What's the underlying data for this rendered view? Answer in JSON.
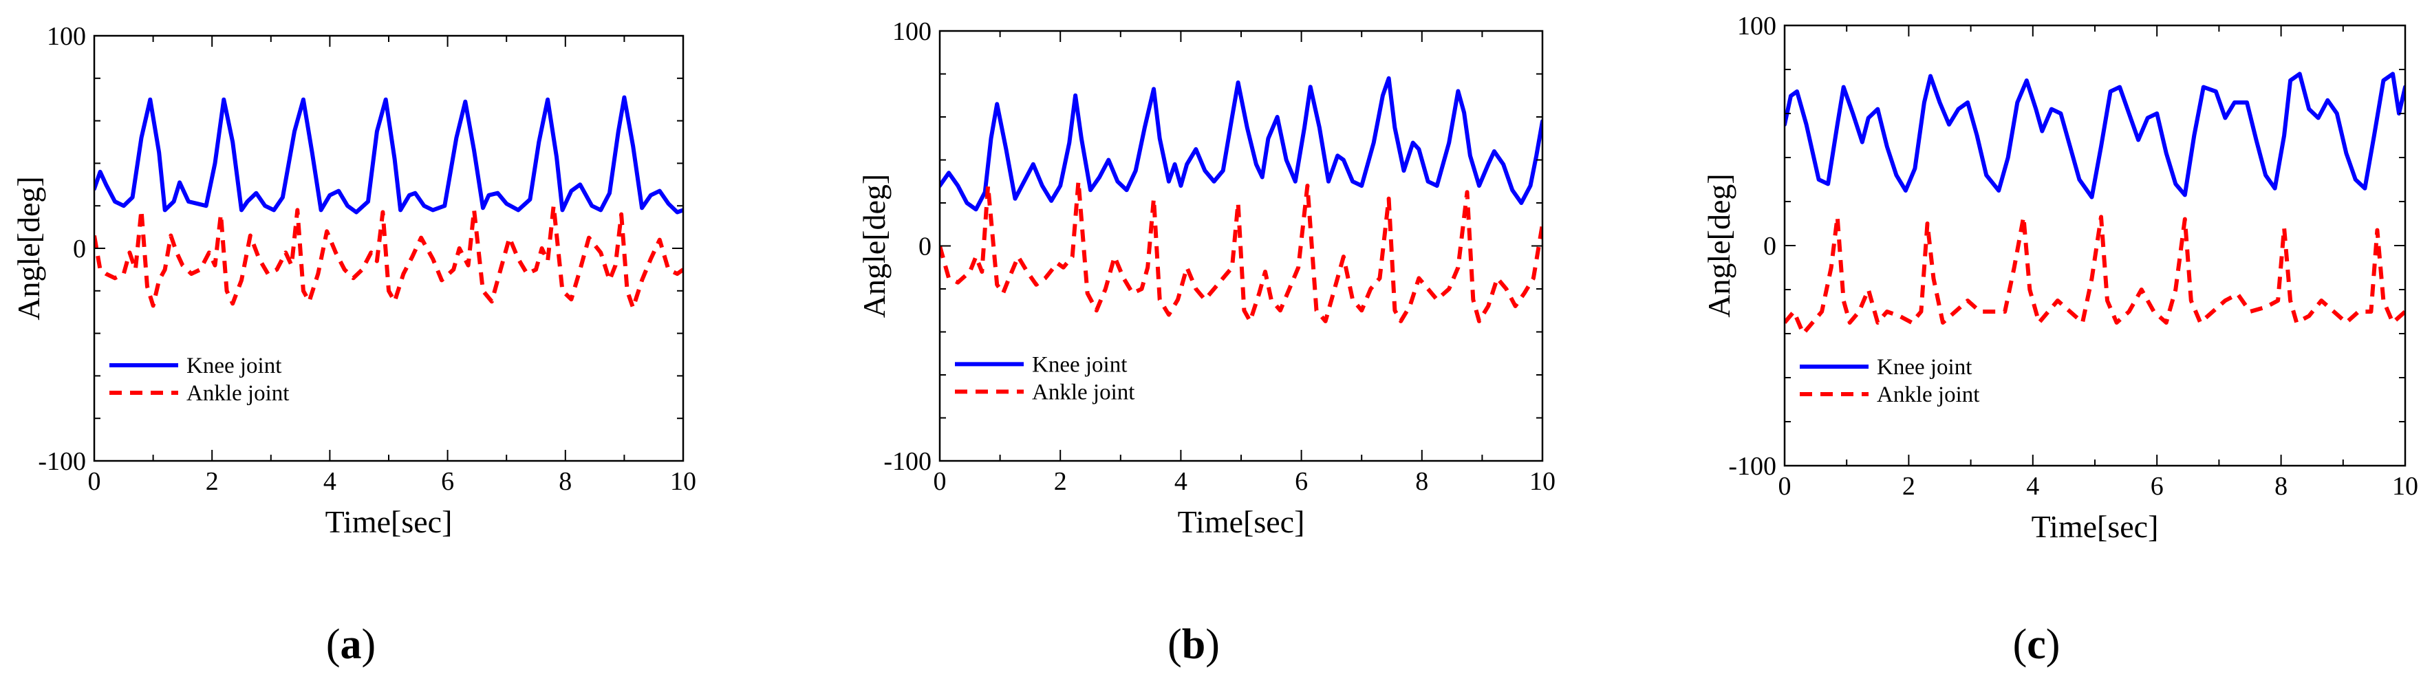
{
  "chart_data": [
    {
      "type": "line",
      "panel_label": "a",
      "xlabel": "Time[sec]",
      "ylabel": "Angle[deg]",
      "xlim": [
        0,
        10
      ],
      "ylim": [
        -100,
        100
      ],
      "xticks": [
        0,
        2,
        4,
        6,
        8,
        10
      ],
      "yticks": [
        -100,
        0,
        100
      ],
      "legend_position": "lower-left",
      "series": [
        {
          "name": "Knee joint",
          "color": "#0000ff",
          "style": "solid",
          "x": [
            0,
            0.1,
            0.2,
            0.35,
            0.5,
            0.65,
            0.8,
            0.95,
            1.1,
            1.2,
            1.35,
            1.45,
            1.6,
            1.75,
            1.9,
            2.05,
            2.2,
            2.35,
            2.5,
            2.6,
            2.75,
            2.9,
            3.05,
            3.2,
            3.4,
            3.55,
            3.7,
            3.85,
            4.0,
            4.15,
            4.3,
            4.45,
            4.65,
            4.8,
            4.95,
            5.1,
            5.2,
            5.35,
            5.45,
            5.6,
            5.75,
            5.95,
            6.15,
            6.3,
            6.45,
            6.6,
            6.7,
            6.85,
            7.0,
            7.2,
            7.4,
            7.55,
            7.7,
            7.85,
            7.95,
            8.1,
            8.25,
            8.45,
            8.6,
            8.75,
            8.9,
            9.0,
            9.15,
            9.3,
            9.45,
            9.6,
            9.75,
            9.9,
            10.0
          ],
          "y": [
            28,
            36,
            30,
            22,
            20,
            24,
            52,
            70,
            45,
            18,
            22,
            31,
            22,
            21,
            20,
            40,
            70,
            50,
            18,
            22,
            26,
            20,
            18,
            24,
            55,
            70,
            45,
            18,
            25,
            27,
            20,
            17,
            22,
            55,
            70,
            42,
            18,
            25,
            26,
            20,
            18,
            20,
            52,
            69,
            46,
            19,
            25,
            26,
            21,
            18,
            23,
            50,
            70,
            43,
            18,
            27,
            30,
            20,
            18,
            26,
            55,
            71,
            48,
            19,
            25,
            27,
            21,
            17,
            18
          ]
        },
        {
          "name": "Ankle joint",
          "color": "#ff0000",
          "style": "dashed",
          "x": [
            0,
            0.1,
            0.2,
            0.35,
            0.5,
            0.6,
            0.7,
            0.8,
            0.9,
            1.0,
            1.1,
            1.2,
            1.3,
            1.4,
            1.5,
            1.65,
            1.8,
            1.95,
            2.05,
            2.15,
            2.25,
            2.35,
            2.5,
            2.65,
            2.8,
            2.95,
            3.1,
            3.25,
            3.35,
            3.45,
            3.55,
            3.65,
            3.8,
            3.95,
            4.1,
            4.25,
            4.4,
            4.55,
            4.7,
            4.8,
            4.9,
            5.0,
            5.1,
            5.25,
            5.4,
            5.55,
            5.75,
            5.9,
            6.1,
            6.2,
            6.35,
            6.45,
            6.6,
            6.75,
            6.9,
            7.05,
            7.2,
            7.35,
            7.5,
            7.6,
            7.7,
            7.8,
            7.95,
            8.1,
            8.25,
            8.4,
            8.6,
            8.75,
            8.85,
            8.95,
            9.05,
            9.15,
            9.3,
            9.45,
            9.6,
            9.75,
            9.9,
            10.0
          ],
          "y": [
            6,
            -10,
            -12,
            -14,
            -12,
            -2,
            -10,
            18,
            -18,
            -27,
            -15,
            -10,
            6,
            -2,
            -8,
            -12,
            -10,
            -2,
            -8,
            16,
            -20,
            -26,
            -15,
            6,
            -5,
            -12,
            -10,
            -2,
            -8,
            18,
            -20,
            -25,
            -12,
            8,
            -2,
            -10,
            -14,
            -10,
            -2,
            -6,
            17,
            -20,
            -25,
            -12,
            -4,
            5,
            -5,
            -15,
            -10,
            0,
            -8,
            18,
            -20,
            -25,
            -10,
            5,
            -5,
            -12,
            -10,
            0,
            -6,
            20,
            -20,
            -24,
            -10,
            5,
            -2,
            -15,
            -8,
            16,
            -20,
            -28,
            -15,
            -5,
            4,
            -10,
            -12,
            -10
          ]
        }
      ]
    },
    {
      "type": "line",
      "panel_label": "b",
      "xlabel": "Time[sec]",
      "ylabel": "Angle[deg]",
      "xlim": [
        0,
        10
      ],
      "ylim": [
        -100,
        100
      ],
      "xticks": [
        0,
        2,
        4,
        6,
        8,
        10
      ],
      "yticks": [
        -100,
        0,
        100
      ],
      "legend_position": "lower-left",
      "series": [
        {
          "name": "Knee joint",
          "color": "#0000ff",
          "style": "solid",
          "x": [
            0,
            0.15,
            0.3,
            0.45,
            0.6,
            0.75,
            0.85,
            0.95,
            1.1,
            1.25,
            1.4,
            1.55,
            1.7,
            1.85,
            2.0,
            2.15,
            2.25,
            2.35,
            2.5,
            2.65,
            2.8,
            2.95,
            3.1,
            3.25,
            3.4,
            3.55,
            3.65,
            3.8,
            3.9,
            4.0,
            4.1,
            4.25,
            4.4,
            4.55,
            4.7,
            4.85,
            4.95,
            5.1,
            5.25,
            5.35,
            5.45,
            5.6,
            5.75,
            5.9,
            6.05,
            6.15,
            6.3,
            6.45,
            6.6,
            6.7,
            6.85,
            7.0,
            7.2,
            7.35,
            7.45,
            7.55,
            7.7,
            7.85,
            7.95,
            8.1,
            8.25,
            8.45,
            8.6,
            8.7,
            8.8,
            8.95,
            9.1,
            9.2,
            9.35,
            9.5,
            9.65,
            9.8,
            9.9,
            10.0
          ],
          "y": [
            28,
            34,
            28,
            20,
            17,
            25,
            50,
            66,
            45,
            22,
            30,
            38,
            28,
            21,
            28,
            48,
            70,
            50,
            26,
            32,
            40,
            30,
            26,
            35,
            55,
            73,
            50,
            30,
            38,
            28,
            38,
            45,
            35,
            30,
            35,
            60,
            76,
            55,
            38,
            32,
            50,
            60,
            40,
            30,
            55,
            74,
            55,
            30,
            42,
            40,
            30,
            28,
            48,
            70,
            78,
            55,
            35,
            48,
            45,
            30,
            28,
            48,
            72,
            62,
            42,
            28,
            38,
            44,
            38,
            26,
            20,
            28,
            42,
            58
          ]
        },
        {
          "name": "Ankle joint",
          "color": "#ff0000",
          "style": "dashed",
          "x": [
            0,
            0.15,
            0.3,
            0.5,
            0.6,
            0.7,
            0.8,
            0.95,
            1.05,
            1.15,
            1.3,
            1.45,
            1.6,
            1.75,
            1.95,
            2.05,
            2.2,
            2.3,
            2.45,
            2.6,
            2.75,
            2.9,
            3.05,
            3.2,
            3.35,
            3.45,
            3.55,
            3.65,
            3.8,
            3.95,
            4.1,
            4.25,
            4.4,
            4.55,
            4.7,
            4.85,
            4.95,
            5.05,
            5.15,
            5.3,
            5.4,
            5.5,
            5.65,
            5.8,
            5.95,
            6.1,
            6.25,
            6.4,
            6.55,
            6.7,
            6.85,
            7.0,
            7.15,
            7.3,
            7.45,
            7.55,
            7.65,
            7.8,
            7.95,
            8.1,
            8.25,
            8.45,
            8.6,
            8.75,
            8.85,
            8.95,
            9.1,
            9.25,
            9.4,
            9.55,
            9.7,
            9.85,
            10.0
          ],
          "y": [
            0,
            -15,
            -17,
            -12,
            -5,
            -12,
            28,
            -18,
            -22,
            -15,
            -5,
            -12,
            -18,
            -15,
            -8,
            -10,
            -5,
            30,
            -22,
            -30,
            -20,
            -5,
            -15,
            -22,
            -20,
            -10,
            22,
            -25,
            -32,
            -25,
            -10,
            -20,
            -25,
            -20,
            -15,
            -10,
            20,
            -30,
            -35,
            -22,
            -12,
            -25,
            -30,
            -20,
            -10,
            28,
            -30,
            -35,
            -20,
            -5,
            -25,
            -30,
            -20,
            -15,
            22,
            -30,
            -35,
            -28,
            -15,
            -20,
            -25,
            -20,
            -10,
            25,
            -25,
            -35,
            -28,
            -15,
            -20,
            -28,
            -22,
            -15,
            10
          ]
        }
      ]
    },
    {
      "type": "line",
      "panel_label": "c",
      "xlabel": "Time[sec]",
      "ylabel": "Angle[deg]",
      "xlim": [
        0,
        10
      ],
      "ylim": [
        -100,
        100
      ],
      "xticks": [
        0,
        2,
        4,
        6,
        8,
        10
      ],
      "yticks": [
        -100,
        0,
        100
      ],
      "legend_position": "lower-left",
      "series": [
        {
          "name": "Knee joint",
          "color": "#0000ff",
          "style": "solid",
          "x": [
            0,
            0.1,
            0.2,
            0.35,
            0.55,
            0.7,
            0.85,
            0.95,
            1.1,
            1.25,
            1.35,
            1.5,
            1.65,
            1.8,
            1.95,
            2.1,
            2.25,
            2.35,
            2.5,
            2.65,
            2.8,
            2.95,
            3.1,
            3.25,
            3.45,
            3.6,
            3.75,
            3.9,
            4.05,
            4.15,
            4.3,
            4.45,
            4.6,
            4.75,
            4.95,
            5.1,
            5.25,
            5.4,
            5.55,
            5.7,
            5.85,
            6.0,
            6.15,
            6.3,
            6.45,
            6.6,
            6.75,
            6.95,
            7.1,
            7.25,
            7.45,
            7.6,
            7.75,
            7.9,
            8.05,
            8.15,
            8.3,
            8.45,
            8.6,
            8.75,
            8.9,
            9.05,
            9.2,
            9.35,
            9.5,
            9.65,
            9.8,
            9.9,
            10.0
          ],
          "y": [
            55,
            68,
            70,
            55,
            30,
            28,
            55,
            72,
            60,
            47,
            58,
            62,
            45,
            32,
            25,
            35,
            65,
            77,
            65,
            55,
            62,
            65,
            50,
            32,
            25,
            40,
            65,
            75,
            62,
            52,
            62,
            60,
            45,
            30,
            22,
            45,
            70,
            72,
            60,
            48,
            58,
            60,
            42,
            28,
            23,
            50,
            72,
            70,
            58,
            65,
            65,
            48,
            32,
            26,
            50,
            75,
            78,
            62,
            58,
            66,
            60,
            42,
            30,
            26,
            50,
            75,
            78,
            60,
            72
          ]
        },
        {
          "name": "Ankle joint",
          "color": "#ff0000",
          "style": "dashed",
          "x": [
            0,
            0.15,
            0.3,
            0.45,
            0.6,
            0.75,
            0.85,
            0.95,
            1.05,
            1.2,
            1.35,
            1.5,
            1.65,
            1.85,
            2.05,
            2.2,
            2.3,
            2.4,
            2.55,
            2.75,
            2.95,
            3.15,
            3.35,
            3.55,
            3.7,
            3.85,
            3.95,
            4.1,
            4.25,
            4.4,
            4.6,
            4.8,
            4.95,
            5.1,
            5.2,
            5.35,
            5.55,
            5.75,
            5.95,
            6.15,
            6.3,
            6.45,
            6.55,
            6.7,
            6.9,
            7.1,
            7.3,
            7.5,
            7.75,
            7.95,
            8.05,
            8.15,
            8.25,
            8.45,
            8.65,
            8.85,
            9.05,
            9.25,
            9.45,
            9.55,
            9.65,
            9.8,
            10.0
          ],
          "y": [
            -35,
            -30,
            -40,
            -35,
            -30,
            -10,
            13,
            -25,
            -35,
            -30,
            -20,
            -35,
            -30,
            -32,
            -35,
            -30,
            10,
            -15,
            -35,
            -30,
            -25,
            -30,
            -30,
            -30,
            -10,
            13,
            -20,
            -35,
            -30,
            -25,
            -30,
            -35,
            -15,
            13,
            -25,
            -35,
            -30,
            -20,
            -30,
            -35,
            -20,
            12,
            -25,
            -35,
            -30,
            -25,
            -22,
            -30,
            -28,
            -25,
            8,
            -25,
            -35,
            -32,
            -25,
            -30,
            -35,
            -30,
            -30,
            7,
            -25,
            -35,
            -30
          ]
        }
      ]
    }
  ]
}
